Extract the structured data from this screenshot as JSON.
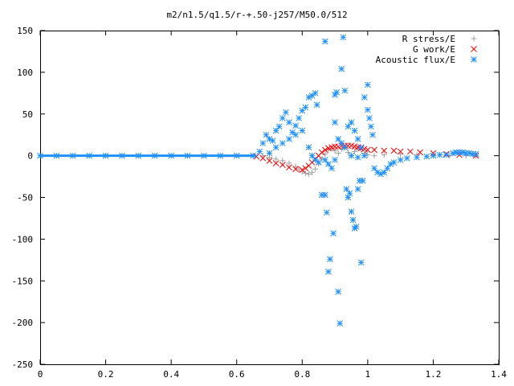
{
  "chart_data": {
    "type": "scatter",
    "title": "m2/n1.5/q1.5/r-+.50-j257/M50.0/512",
    "xlabel": "",
    "ylabel": "",
    "xlim": [
      0,
      1.4
    ],
    "ylim": [
      -250,
      150
    ],
    "x_ticks": [
      "0",
      "0.2",
      "0.4",
      "0.6",
      "0.8",
      "1",
      "1.2",
      "1.4"
    ],
    "y_ticks": [
      "150",
      "100",
      "50",
      "0",
      "-50",
      "-100",
      "-150",
      "-200",
      "-250"
    ],
    "grid": false,
    "legend_position": "top-right",
    "series": [
      {
        "name": "R stress/E",
        "color": "#a0a0a0",
        "marker": "plus",
        "points": [
          [
            0.68,
            0
          ],
          [
            0.7,
            -2
          ],
          [
            0.72,
            -4
          ],
          [
            0.74,
            -6
          ],
          [
            0.76,
            -9
          ],
          [
            0.78,
            -13
          ],
          [
            0.79,
            -16
          ],
          [
            0.8,
            -19
          ],
          [
            0.81,
            -21
          ],
          [
            0.82,
            -22
          ],
          [
            0.83,
            -20
          ],
          [
            0.84,
            -16
          ],
          [
            0.85,
            -10
          ],
          [
            0.86,
            -4
          ],
          [
            0.87,
            2
          ],
          [
            0.88,
            7
          ],
          [
            0.89,
            9
          ],
          [
            0.9,
            6
          ],
          [
            0.91,
            3
          ],
          [
            0.92,
            8
          ],
          [
            0.93,
            10
          ],
          [
            0.94,
            4
          ],
          [
            0.95,
            0
          ],
          [
            0.96,
            5
          ],
          [
            0.97,
            9
          ],
          [
            0.98,
            7
          ],
          [
            0.99,
            3
          ],
          [
            1.0,
            1
          ],
          [
            1.02,
            0
          ],
          [
            1.05,
            1
          ],
          [
            1.1,
            2
          ],
          [
            1.15,
            1
          ],
          [
            1.2,
            1
          ],
          [
            1.25,
            0
          ],
          [
            1.3,
            0
          ],
          [
            1.33,
            0
          ]
        ]
      },
      {
        "name": "G work/E",
        "color": "#ff0000",
        "marker": "cross",
        "points": [
          [
            0.66,
            -1
          ],
          [
            0.68,
            -3
          ],
          [
            0.7,
            -6
          ],
          [
            0.72,
            -9
          ],
          [
            0.74,
            -11
          ],
          [
            0.76,
            -14
          ],
          [
            0.78,
            -16
          ],
          [
            0.8,
            -17
          ],
          [
            0.81,
            -15
          ],
          [
            0.82,
            -12
          ],
          [
            0.83,
            -8
          ],
          [
            0.84,
            -4
          ],
          [
            0.85,
            0
          ],
          [
            0.86,
            4
          ],
          [
            0.87,
            7
          ],
          [
            0.88,
            9
          ],
          [
            0.89,
            10
          ],
          [
            0.9,
            11
          ],
          [
            0.91,
            11
          ],
          [
            0.92,
            12
          ],
          [
            0.93,
            12
          ],
          [
            0.94,
            12
          ],
          [
            0.95,
            12
          ],
          [
            0.96,
            11
          ],
          [
            0.97,
            10
          ],
          [
            0.98,
            9
          ],
          [
            0.99,
            8
          ],
          [
            1.0,
            7
          ],
          [
            1.02,
            7
          ],
          [
            1.05,
            6
          ],
          [
            1.08,
            6
          ],
          [
            1.1,
            5
          ],
          [
            1.13,
            5
          ],
          [
            1.16,
            4
          ],
          [
            1.2,
            3
          ],
          [
            1.24,
            2
          ],
          [
            1.28,
            1
          ],
          [
            1.33,
            0
          ]
        ]
      },
      {
        "name": "Acoustic flux/E",
        "color": "#1e90ff",
        "marker": "star",
        "points": [
          [
            0.0,
            0
          ],
          [
            0.05,
            0
          ],
          [
            0.1,
            0
          ],
          [
            0.15,
            0
          ],
          [
            0.2,
            0
          ],
          [
            0.25,
            0
          ],
          [
            0.3,
            0
          ],
          [
            0.35,
            0
          ],
          [
            0.4,
            0
          ],
          [
            0.45,
            0
          ],
          [
            0.5,
            0
          ],
          [
            0.55,
            0
          ],
          [
            0.6,
            0
          ],
          [
            0.65,
            0
          ],
          [
            0.67,
            5
          ],
          [
            0.68,
            15
          ],
          [
            0.69,
            25
          ],
          [
            0.7,
            20
          ],
          [
            0.71,
            18
          ],
          [
            0.72,
            30
          ],
          [
            0.73,
            35
          ],
          [
            0.74,
            45
          ],
          [
            0.75,
            52
          ],
          [
            0.76,
            40
          ],
          [
            0.77,
            28
          ],
          [
            0.78,
            36
          ],
          [
            0.79,
            45
          ],
          [
            0.8,
            54
          ],
          [
            0.81,
            58
          ],
          [
            0.82,
            70
          ],
          [
            0.83,
            72
          ],
          [
            0.84,
            75
          ],
          [
            0.845,
            61
          ],
          [
            0.7,
            3
          ],
          [
            0.72,
            10
          ],
          [
            0.74,
            15
          ],
          [
            0.76,
            20
          ],
          [
            0.78,
            25
          ],
          [
            0.8,
            30
          ],
          [
            0.82,
            10
          ],
          [
            0.83,
            0
          ],
          [
            0.84,
            -5
          ],
          [
            0.85,
            -8
          ],
          [
            0.86,
            -47
          ],
          [
            0.87,
            -47
          ],
          [
            0.875,
            -68
          ],
          [
            0.885,
            -124
          ],
          [
            0.88,
            -139
          ],
          [
            0.87,
            137
          ],
          [
            0.895,
            -93
          ],
          [
            0.9,
            73
          ],
          [
            0.905,
            76
          ],
          [
            0.91,
            -163
          ],
          [
            0.915,
            -201
          ],
          [
            0.92,
            104
          ],
          [
            0.925,
            142
          ],
          [
            0.93,
            78
          ],
          [
            0.935,
            -40
          ],
          [
            0.94,
            -50
          ],
          [
            0.945,
            -45
          ],
          [
            0.95,
            -67
          ],
          [
            0.955,
            -77
          ],
          [
            0.96,
            -87
          ],
          [
            0.965,
            -85
          ],
          [
            0.97,
            -40
          ],
          [
            0.975,
            -30
          ],
          [
            0.98,
            -128
          ],
          [
            0.985,
            -30
          ],
          [
            0.9,
            40
          ],
          [
            0.91,
            20
          ],
          [
            0.92,
            15
          ],
          [
            0.93,
            10
          ],
          [
            0.94,
            35
          ],
          [
            0.95,
            40
          ],
          [
            0.96,
            30
          ],
          [
            0.97,
            20
          ],
          [
            0.98,
            10
          ],
          [
            0.99,
            70
          ],
          [
            1.0,
            85
          ],
          [
            1.0,
            55
          ],
          [
            1.005,
            45
          ],
          [
            1.01,
            35
          ],
          [
            1.015,
            25
          ],
          [
            0.87,
            -5
          ],
          [
            0.88,
            -10
          ],
          [
            0.89,
            -15
          ],
          [
            0.9,
            -5
          ],
          [
            0.95,
            0
          ],
          [
            0.97,
            -2
          ],
          [
            0.99,
            0
          ],
          [
            1.02,
            -15
          ],
          [
            1.03,
            -20
          ],
          [
            1.04,
            -22
          ],
          [
            1.05,
            -20
          ],
          [
            1.06,
            -15
          ],
          [
            1.07,
            -10
          ],
          [
            1.08,
            -8
          ],
          [
            1.1,
            -5
          ],
          [
            1.12,
            -3
          ],
          [
            1.15,
            -2
          ],
          [
            1.18,
            -1
          ],
          [
            1.2,
            0
          ],
          [
            1.22,
            1
          ],
          [
            1.24,
            1
          ],
          [
            1.26,
            3
          ],
          [
            1.27,
            4
          ],
          [
            1.28,
            4
          ],
          [
            1.29,
            4
          ],
          [
            1.3,
            3
          ],
          [
            1.31,
            3
          ],
          [
            1.32,
            2
          ],
          [
            1.33,
            2
          ]
        ]
      }
    ]
  }
}
